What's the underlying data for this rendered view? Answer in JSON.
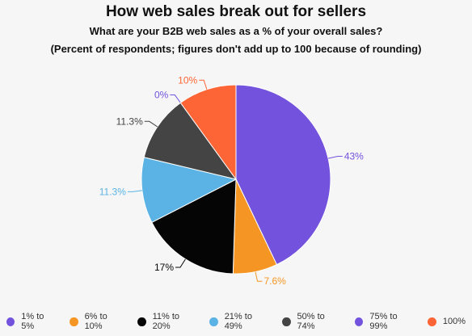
{
  "chart_data": {
    "type": "pie",
    "title": "How web sales break out for sellers",
    "subtitle": "What are your B2B web sales as a % of your overall sales?",
    "note": "(Percent of respondents; figures don't add up to 100 because of rounding)",
    "slices": [
      {
        "name": "75% to 99%",
        "value": 43,
        "label": "43%",
        "color": "#7352dd"
      },
      {
        "name": "6% to 10%",
        "value": 7.6,
        "label": "7.6%",
        "color": "#f59624"
      },
      {
        "name": "11% to 20%",
        "value": 17,
        "label": "17%",
        "color": "#050505"
      },
      {
        "name": "21% to 49%",
        "value": 11.3,
        "label": "11.3%",
        "color": "#5ab3e4"
      },
      {
        "name": "50% to 74%",
        "value": 11.3,
        "label": "11.3%",
        "color": "#444444"
      },
      {
        "name": "1% to 5%",
        "value": 0,
        "label": "0%",
        "color": "#7352dd"
      },
      {
        "name": "100%",
        "value": 10,
        "label": "10%",
        "color": "#fd6536"
      }
    ],
    "legend": {
      "position": "bottom",
      "items": [
        {
          "name": "1% to 5%",
          "color": "#7352dd"
        },
        {
          "name": "6% to 10%",
          "color": "#f59624"
        },
        {
          "name": "11% to 20%",
          "color": "#050505"
        },
        {
          "name": "21% to 49%",
          "color": "#5ab3e4"
        },
        {
          "name": "50% to 74%",
          "color": "#444444"
        },
        {
          "name": "75% to 99%",
          "color": "#7352dd"
        },
        {
          "name": "100%",
          "color": "#fd6536"
        }
      ]
    }
  }
}
